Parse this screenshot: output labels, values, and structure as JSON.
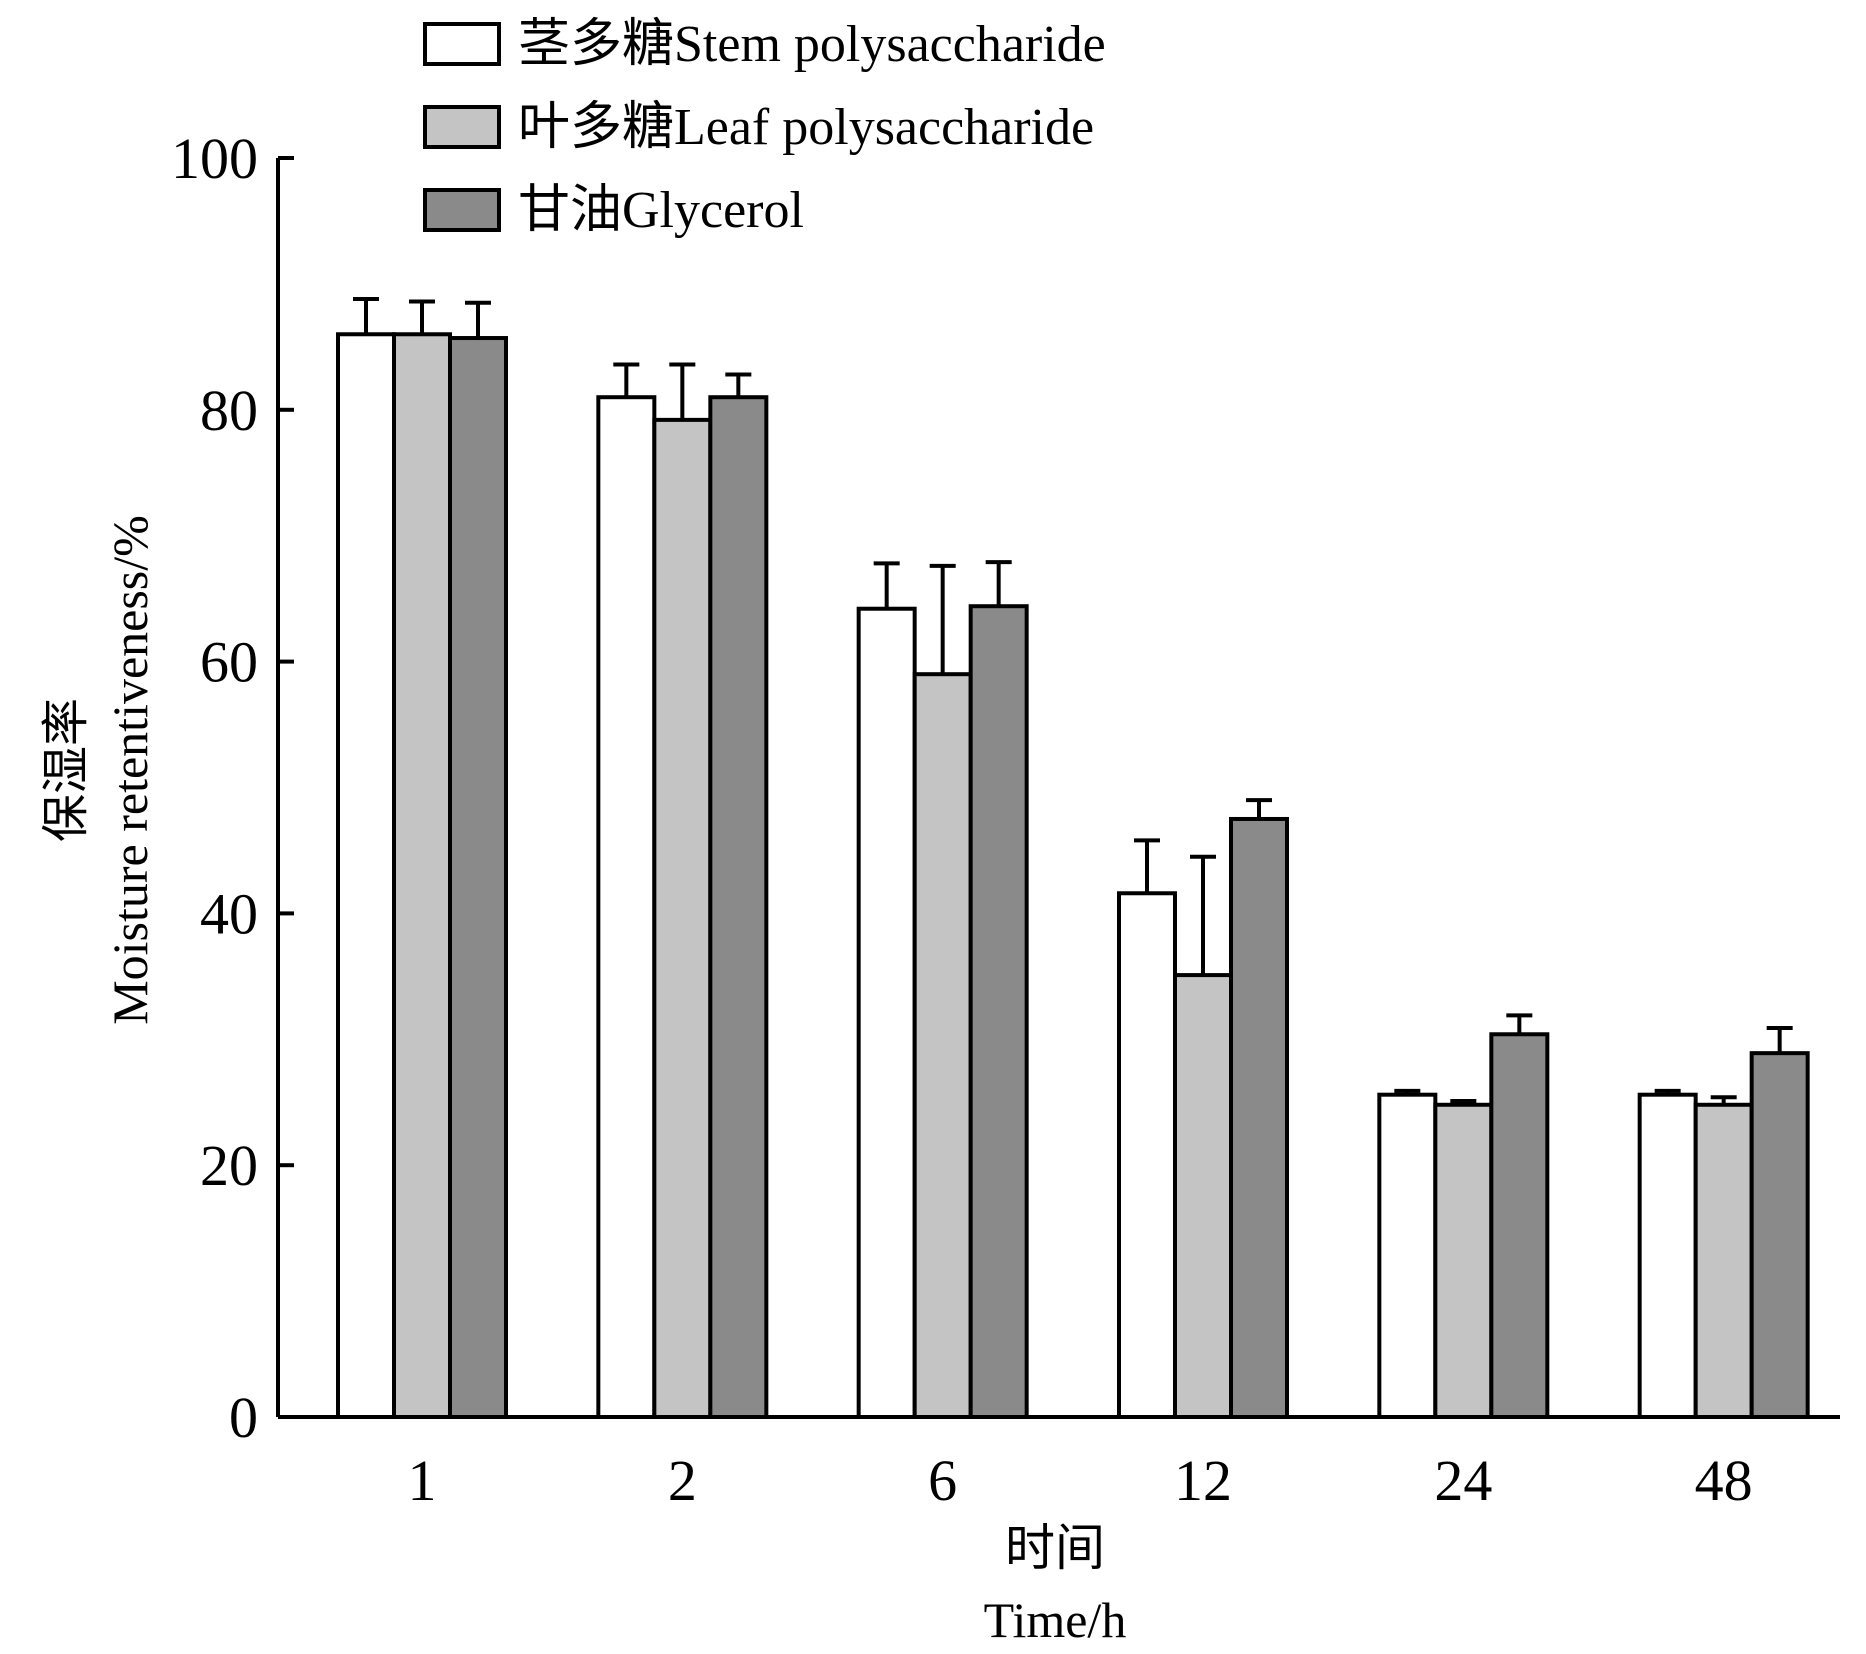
{
  "chart_data": {
    "type": "bar",
    "categories": [
      "1",
      "2",
      "6",
      "12",
      "24",
      "48"
    ],
    "series": [
      {
        "name": "茎多糖Stem polysaccharide",
        "values": [
          86.0,
          81.0,
          64.2,
          41.6,
          25.6,
          25.6
        ],
        "errors": [
          2.8,
          2.6,
          3.6,
          4.2,
          0.3,
          0.3
        ],
        "color": "#ffffff"
      },
      {
        "name": "叶多糖Leaf polysaccharide",
        "values": [
          86.0,
          79.2,
          59.0,
          35.1,
          24.8,
          24.8
        ],
        "errors": [
          2.6,
          4.4,
          8.6,
          9.4,
          0.3,
          0.6
        ],
        "color": "#c4c4c4"
      },
      {
        "name": "甘油Glycerol",
        "values": [
          85.7,
          81.0,
          64.4,
          47.5,
          30.4,
          28.9
        ],
        "errors": [
          2.8,
          1.8,
          3.5,
          1.5,
          1.5,
          2.0
        ],
        "color": "#8a8a8a"
      }
    ],
    "ylim": [
      0,
      100
    ],
    "yticks": [
      0,
      20,
      40,
      60,
      80,
      100
    ],
    "ylabel_cn": "保湿率",
    "ylabel_en": "Moisture retentiveness/%",
    "xlabel_cn": "时间",
    "xlabel_en": "Time/h",
    "legend_position": "top-left",
    "grid": false
  }
}
